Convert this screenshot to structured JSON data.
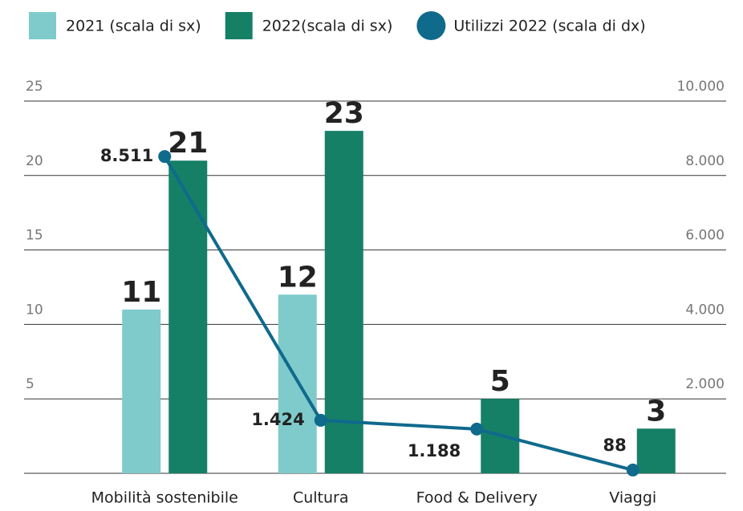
{
  "chart_data": {
    "type": "bar",
    "categories": [
      "Mobilità sostenibile",
      "Cultura",
      "Food & Delivery",
      "Viaggi"
    ],
    "series": [
      {
        "name": "2021 (scala di sx)",
        "type": "bar",
        "color": "#7fcbcb",
        "values": [
          11,
          12,
          null,
          null
        ]
      },
      {
        "name": "2022(scala di sx)",
        "type": "bar",
        "color": "#168067",
        "values": [
          21,
          23,
          5,
          3
        ]
      },
      {
        "name": "Utilizzi 2022 (scala di dx)",
        "type": "line",
        "axis": "y2",
        "color": "#0f6a8c",
        "values": [
          8511,
          1424,
          1188,
          88
        ],
        "value_labels": [
          "8.511",
          "1.424",
          "1.188",
          "88"
        ]
      }
    ],
    "ylim": [
      0,
      25
    ],
    "yticks": [
      5,
      10,
      15,
      20,
      25
    ],
    "y2lim": [
      0,
      10000
    ],
    "y2ticks": [
      {
        "value": 2000,
        "label": "2.000"
      },
      {
        "value": 4000,
        "label": "4.000"
      },
      {
        "value": 6000,
        "label": "6.000"
      },
      {
        "value": 8000,
        "label": "8.000"
      },
      {
        "value": 10000,
        "label": "10.000"
      }
    ],
    "grid": true,
    "legend": "top"
  }
}
